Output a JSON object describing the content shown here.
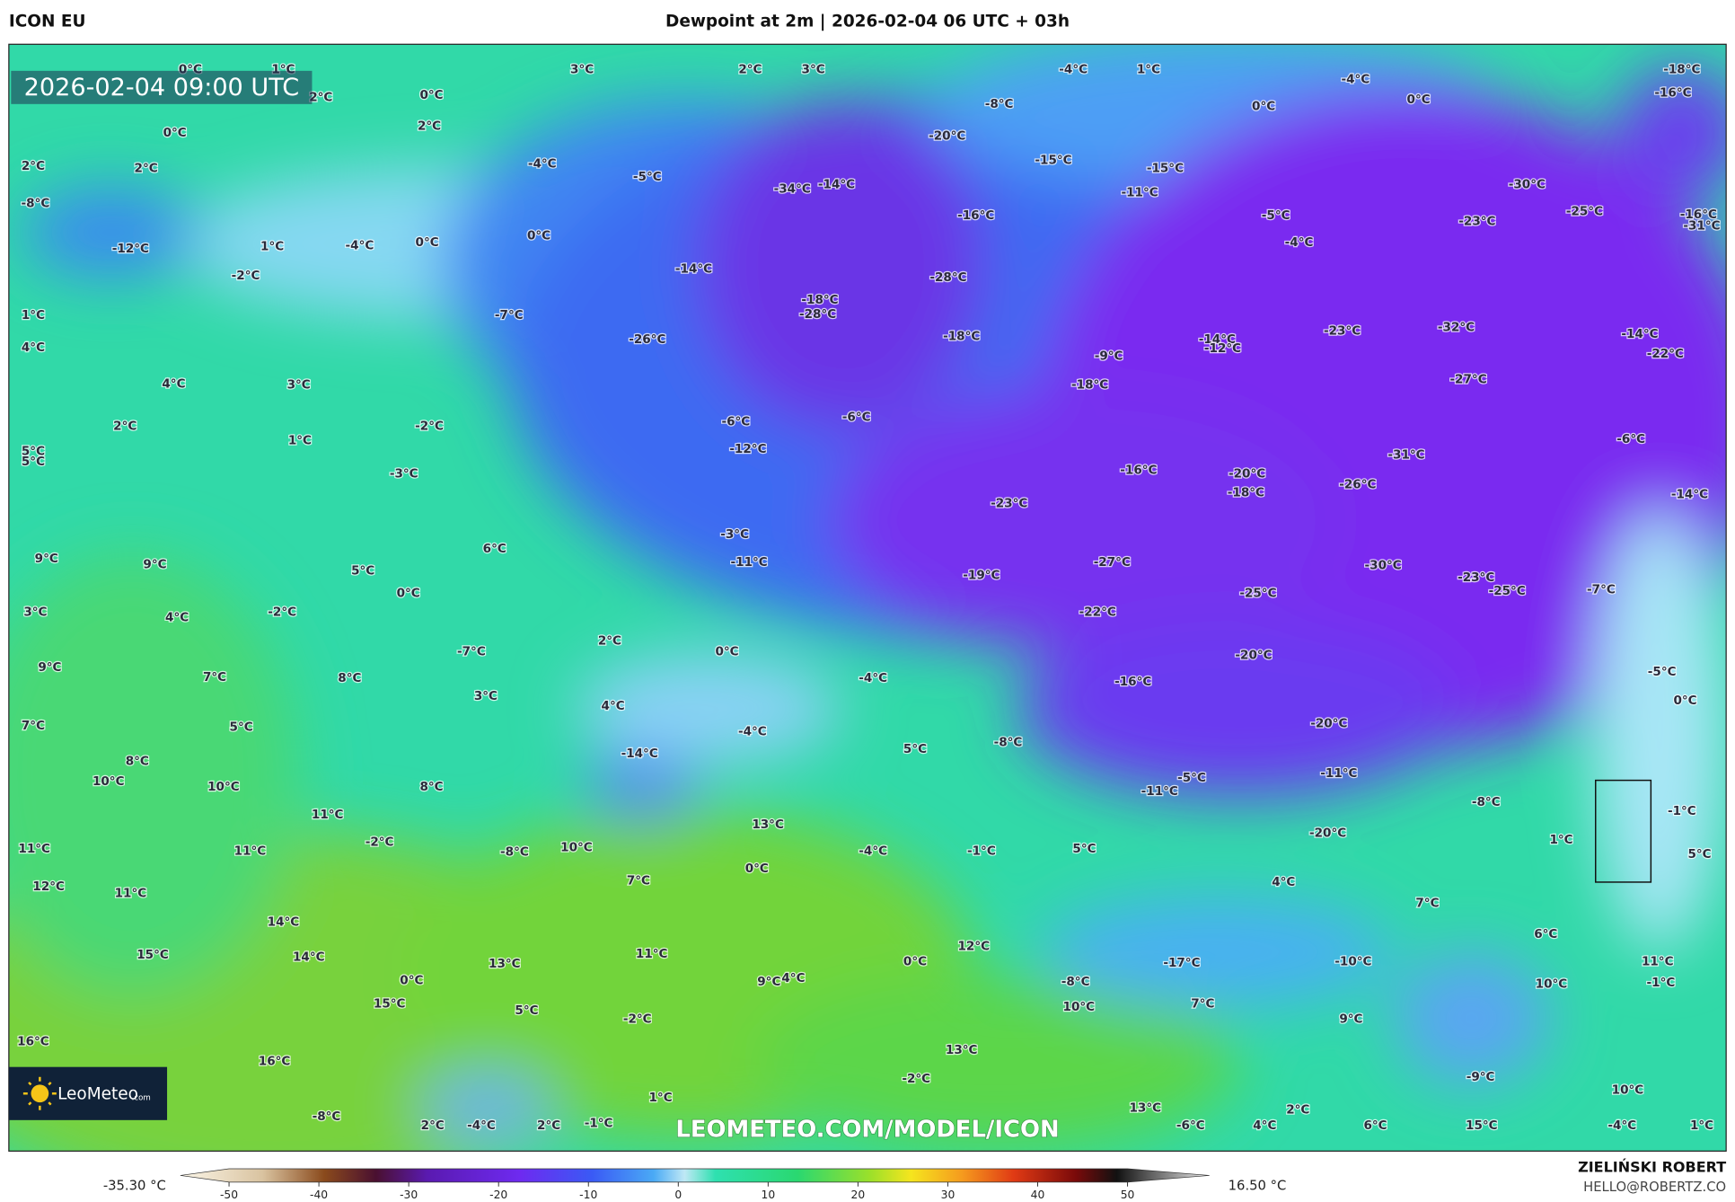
{
  "header": {
    "model": "ICON EU",
    "title": "Dewpoint at 2m | 2026-02-04 06 UTC + 03h"
  },
  "map": {
    "valid_time": "2026-02-04 09:00 UTC",
    "watermark": "LEOMETEO.COM/MODEL/ICON",
    "logo_name": "LeoMeteo",
    "logo_domain": ".com",
    "labels": [
      "0°C",
      "1°C",
      "3°C",
      "2°C",
      "3°C",
      "-4°C",
      "1°C",
      "-4°C",
      "-18°C",
      "0°C",
      "2°C",
      "-8°C",
      "0°C",
      "0°C",
      "-16°C",
      "2°C",
      "0°C",
      "-20°C",
      "-15°C",
      "-15°C",
      "2°C",
      "2°C",
      "-4°C",
      "-5°C",
      "-34°C",
      "-14°C",
      "-11°C",
      "-30°C",
      "-8°C",
      "-16°C",
      "-5°C",
      "-23°C",
      "-25°C",
      "-16°C",
      "-31°C",
      "1°C",
      "-4°C",
      "0°C",
      "0°C",
      "-4°C",
      "-12°C",
      "-2°C",
      "-14°C",
      "-28°C",
      "-18°C",
      "-28°C",
      "1°C",
      "-7°C",
      "-26°C",
      "-18°C",
      "-14°C",
      "-12°C",
      "-23°C",
      "-32°C",
      "-14°C",
      "4°C",
      "-9°C",
      "-22°C",
      "4°C",
      "3°C",
      "-18°C",
      "-27°C",
      "2°C",
      "-2°C",
      "-6°C",
      "-6°C",
      "1°C",
      "-6°C",
      "5°C",
      "5°C",
      "-12°C",
      "-31°C",
      "-3°C",
      "-16°C",
      "-20°C",
      "-18°C",
      "-26°C",
      "-14°C",
      "-23°C",
      "6°C",
      "-3°C",
      "9°C",
      "9°C",
      "5°C",
      "-11°C",
      "-19°C",
      "-27°C",
      "-30°C",
      "-23°C",
      "-25°C",
      "-7°C",
      "0°C",
      "-25°C",
      "3°C",
      "-2°C",
      "4°C",
      "-22°C",
      "2°C",
      "-7°C",
      "0°C",
      "-20°C",
      "9°C",
      "7°C",
      "8°C",
      "-4°C",
      "-16°C",
      "-5°C",
      "3°C",
      "4°C",
      "0°C",
      "7°C",
      "5°C",
      "-4°C",
      "-20°C",
      "-8°C",
      "5°C",
      "-14°C",
      "8°C",
      "10°C",
      "10°C",
      "8°C",
      "-11°C",
      "-5°C",
      "-11°C",
      "-8°C",
      "11°C",
      "13°C",
      "-1°C",
      "-20°C",
      "1°C",
      "-2°C",
      "10°C",
      "-8°C",
      "-4°C",
      "-1°C",
      "5°C",
      "11°C",
      "11°C",
      "5°C",
      "0°C",
      "7°C",
      "4°C",
      "12°C",
      "11°C",
      "7°C",
      "14°C",
      "6°C",
      "12°C",
      "11°C",
      "15°C",
      "14°C",
      "-17°C",
      "-10°C",
      "11°C",
      "13°C",
      "0°C",
      "9°C",
      "4°C",
      "0°C",
      "-8°C",
      "10°C",
      "-1°C",
      "15°C",
      "10°C",
      "7°C",
      "5°C",
      "-2°C",
      "9°C",
      "16°C",
      "13°C",
      "16°C",
      "-2°C",
      "-9°C",
      "10°C",
      "1°C",
      "13°C",
      "2°C",
      "-8°C",
      "2°C",
      "-4°C",
      "2°C",
      "-1°C",
      "-6°C",
      "4°C",
      "6°C",
      "15°C",
      "-4°C",
      "1°C"
    ]
  },
  "legend": {
    "min_label": "-35.30 °C",
    "max_label": "16.50 °C",
    "ticks": [
      -50,
      -40,
      -30,
      -20,
      -10,
      0,
      10,
      20,
      30,
      40,
      50
    ]
  },
  "footer": {
    "author": "ZIELIŃSKI ROBERT",
    "email": "HELLO@ROBERTZ.CO"
  }
}
